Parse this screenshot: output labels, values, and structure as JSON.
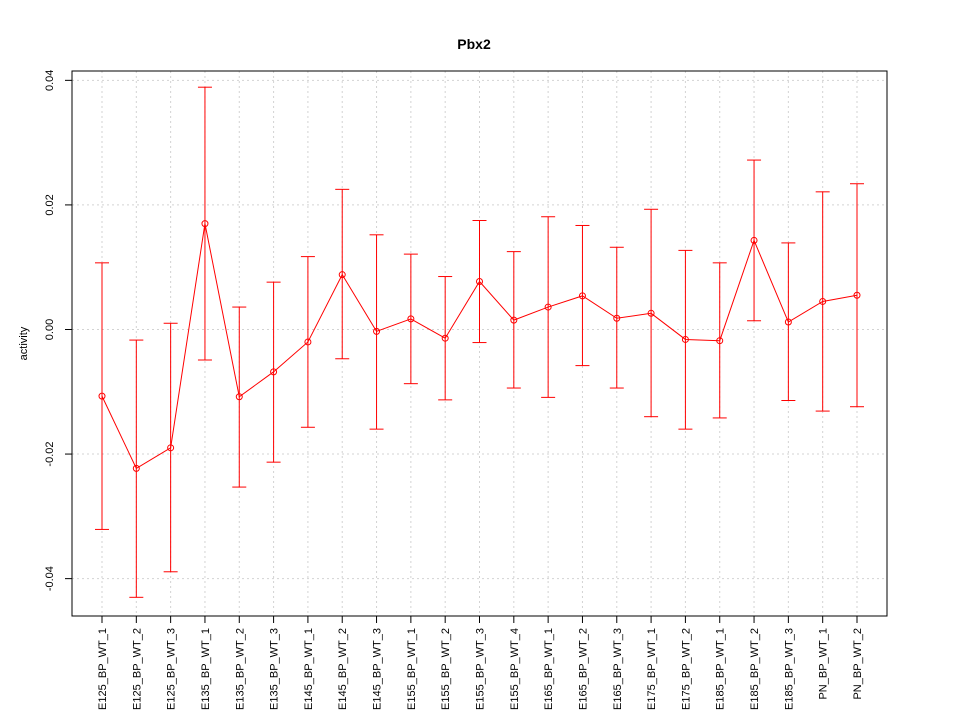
{
  "chart_data": {
    "type": "line",
    "title": "Pbx2",
    "xlabel": "",
    "ylabel": "activity",
    "ylim": [
      -0.046,
      0.0415
    ],
    "yticks": [
      -0.04,
      -0.02,
      0.0,
      0.02,
      0.04
    ],
    "ytick_labels": [
      "-0.04",
      "-0.02",
      "0.00",
      "0.02",
      "0.04"
    ],
    "grid": true,
    "color": "#ff0000",
    "categories": [
      "E125_BP_WT_1",
      "E125_BP_WT_2",
      "E125_BP_WT_3",
      "E135_BP_WT_1",
      "E135_BP_WT_2",
      "E135_BP_WT_3",
      "E145_BP_WT_1",
      "E145_BP_WT_2",
      "E145_BP_WT_3",
      "E155_BP_WT_1",
      "E155_BP_WT_2",
      "E155_BP_WT_3",
      "E155_BP_WT_4",
      "E165_BP_WT_1",
      "E165_BP_WT_2",
      "E165_BP_WT_3",
      "E175_BP_WT_1",
      "E175_BP_WT_2",
      "E185_BP_WT_1",
      "E185_BP_WT_2",
      "E185_BP_WT_3",
      "PN_BP_WT_1",
      "PN_BP_WT_2"
    ],
    "series": [
      {
        "values": [
          -0.0107,
          -0.0223,
          -0.019,
          0.017,
          -0.0108,
          -0.0068,
          -0.002,
          0.0088,
          -0.0003,
          0.0017,
          -0.0014,
          0.0077,
          0.0015,
          0.0036,
          0.0054,
          0.0018,
          0.0026,
          -0.0016,
          -0.0018,
          0.0143,
          0.0012,
          0.0045,
          0.0055
        ],
        "upper": [
          0.0107,
          -0.0017,
          0.001,
          0.0389,
          0.0036,
          0.0076,
          0.0117,
          0.0225,
          0.0152,
          0.0121,
          0.0085,
          0.0175,
          0.0125,
          0.0181,
          0.0167,
          0.0132,
          0.0193,
          0.0127,
          0.0107,
          0.0272,
          0.0139,
          0.0221,
          0.0234
        ],
        "lower": [
          -0.0321,
          -0.043,
          -0.0389,
          -0.0049,
          -0.0253,
          -0.0213,
          -0.0157,
          -0.0047,
          -0.016,
          -0.0087,
          -0.0113,
          -0.0021,
          -0.0094,
          -0.0109,
          -0.0058,
          -0.0094,
          -0.014,
          -0.016,
          -0.0142,
          0.0014,
          -0.0114,
          -0.0131,
          -0.0124
        ]
      }
    ]
  }
}
